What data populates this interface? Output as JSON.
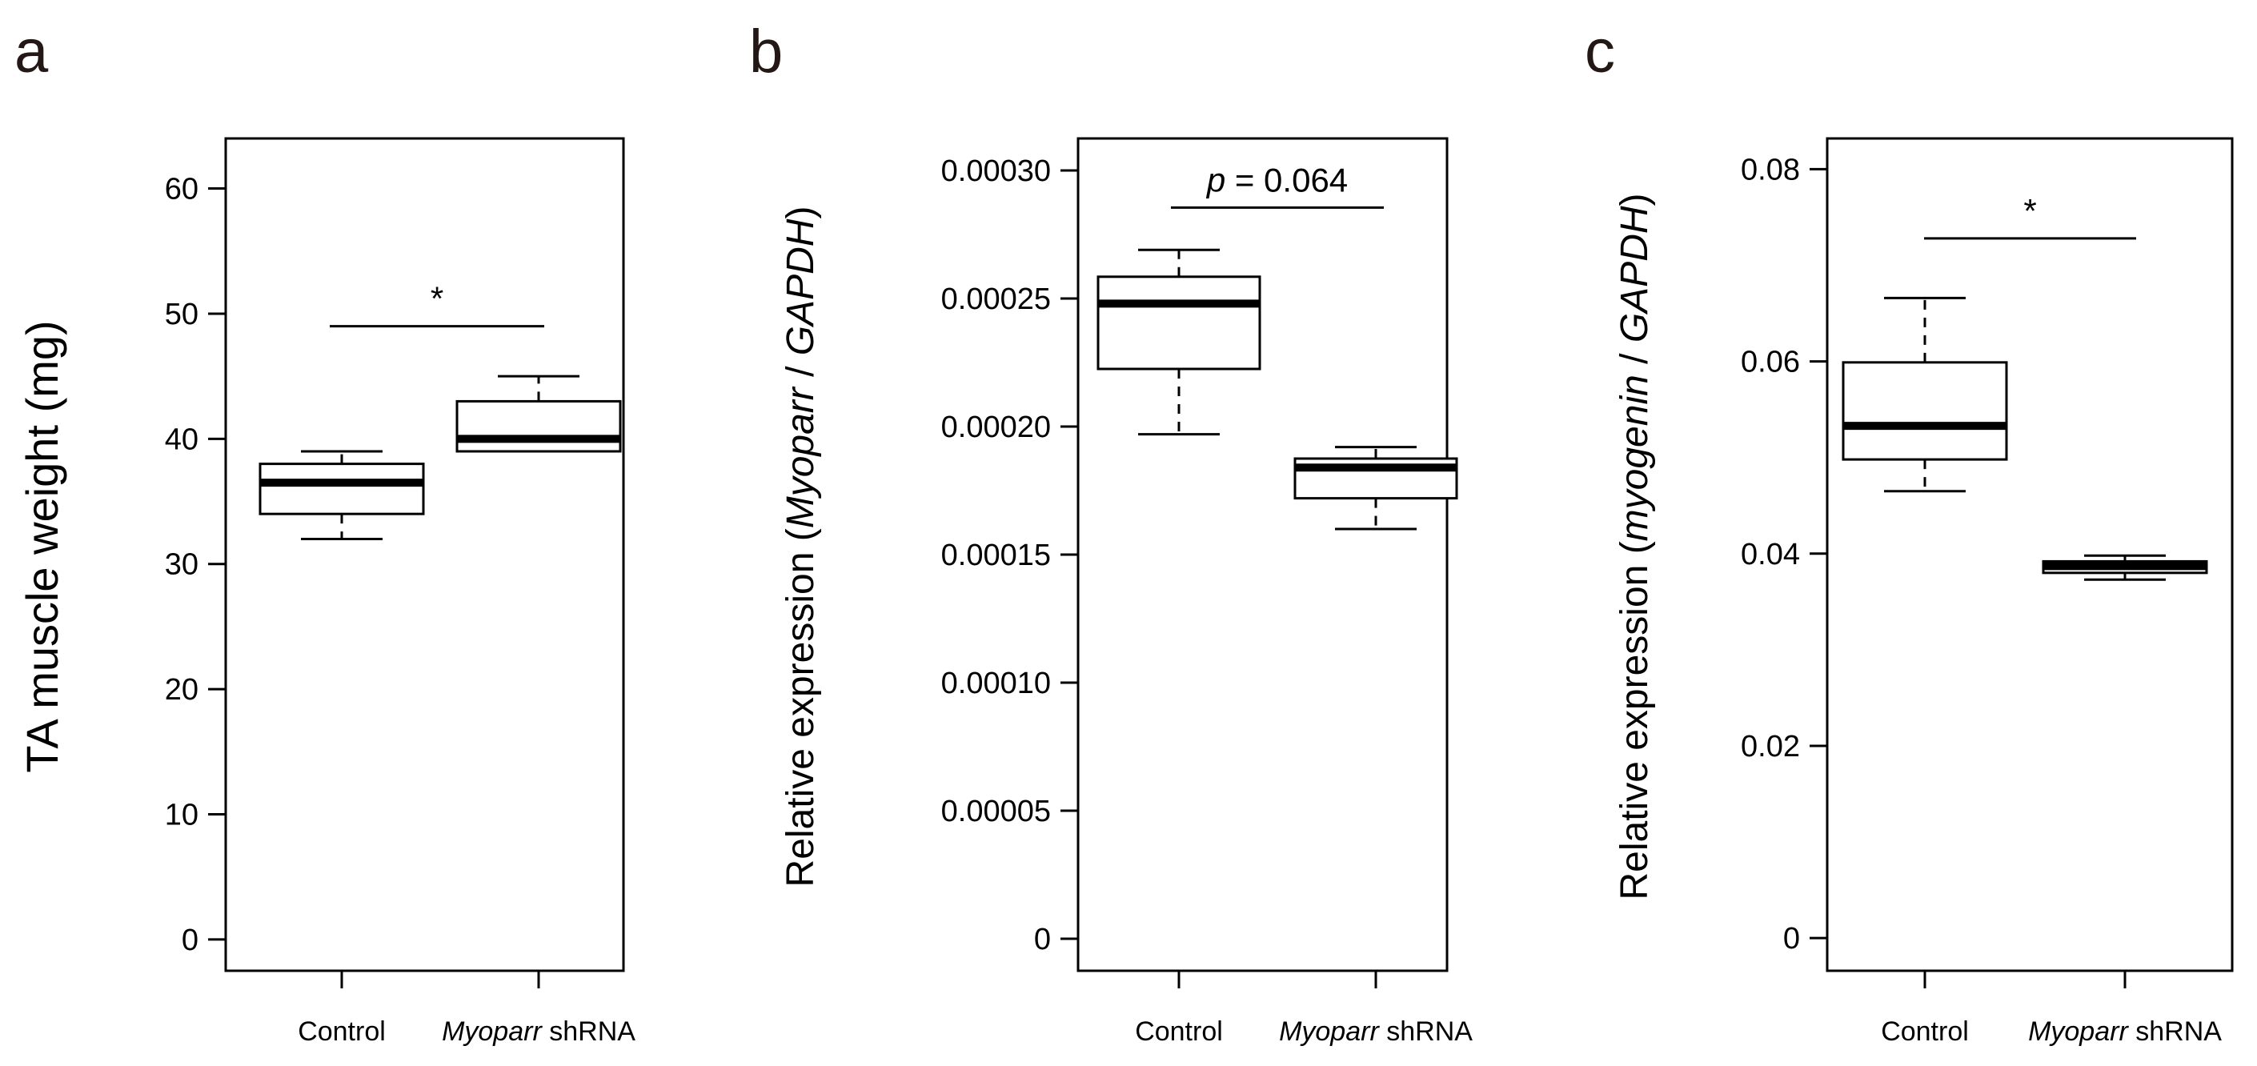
{
  "chart_data": [
    {
      "panel": "a",
      "type": "box",
      "ylabel": "TA muscle weight (mg)",
      "ylim": [
        -2.5,
        64
      ],
      "yticks": [
        0,
        10,
        20,
        30,
        40,
        50,
        60
      ],
      "tick_labels": [
        "0",
        "10",
        "20",
        "30",
        "40",
        "50",
        "60"
      ],
      "categories": [
        {
          "label": "Control",
          "italic": ""
        },
        {
          "label": " shRNA",
          "italic": "Myoparr"
        }
      ],
      "boxes": [
        {
          "whisker_low": 32,
          "q1": 34,
          "median": 36.5,
          "q3": 38,
          "whisker_high": 39
        },
        {
          "whisker_low": 39,
          "q1": 39,
          "median": 40,
          "q3": 43,
          "whisker_high": 45
        }
      ],
      "significance": {
        "label": "*",
        "italic": "",
        "y": 49
      }
    },
    {
      "panel": "b",
      "type": "box",
      "ylabel": "Relative expression (Myoparr / GAPDH)",
      "ylabel_parts": [
        "Relative expression (",
        "Myoparr",
        " / ",
        "GAPDH",
        ")"
      ],
      "ylim": [
        -1.25e-05,
        0.0003125
      ],
      "yticks": [
        0,
        5e-05,
        0.0001,
        0.00015,
        0.0002,
        0.00025,
        0.0003
      ],
      "tick_labels": [
        "0",
        "0.00005",
        "0.00010",
        "0.00015",
        "0.00020",
        "0.00025",
        "0.00030"
      ],
      "categories": [
        {
          "label": "Control",
          "italic": ""
        },
        {
          "label": " shRNA",
          "italic": "Myoparr"
        }
      ],
      "boxes": [
        {
          "whisker_low": 0.000197,
          "q1": 0.0002225,
          "median": 0.000248,
          "q3": 0.0002585,
          "whisker_high": 0.000269
        },
        {
          "whisker_low": 0.00016,
          "q1": 0.000172,
          "median": 0.000184,
          "q3": 0.0001875,
          "whisker_high": 0.000192
        }
      ],
      "significance": {
        "label": " = 0.064",
        "italic": "p",
        "y": 0.0002855
      }
    },
    {
      "panel": "c",
      "type": "box",
      "ylabel": "Relative expression (myogenin / GAPDH)",
      "ylabel_parts": [
        "Relative expression (",
        "myogenin",
        " / ",
        "GAPDH",
        ")"
      ],
      "ylim": [
        -0.0034,
        0.0832
      ],
      "yticks": [
        0,
        0.02,
        0.04,
        0.06,
        0.08
      ],
      "tick_labels": [
        "0",
        "0.02",
        "0.04",
        "0.06",
        "0.08"
      ],
      "categories": [
        {
          "label": "Control",
          "italic": ""
        },
        {
          "label": " shRNA",
          "italic": "Myoparr"
        }
      ],
      "boxes": [
        {
          "whisker_low": 0.0465,
          "q1": 0.0498,
          "median": 0.0533,
          "q3": 0.0599,
          "whisker_high": 0.0666
        },
        {
          "whisker_low": 0.0373,
          "q1": 0.038,
          "median": 0.0387,
          "q3": 0.0392,
          "whisker_high": 0.0398
        }
      ],
      "significance": {
        "label": "*",
        "italic": "",
        "y": 0.0728
      }
    }
  ]
}
